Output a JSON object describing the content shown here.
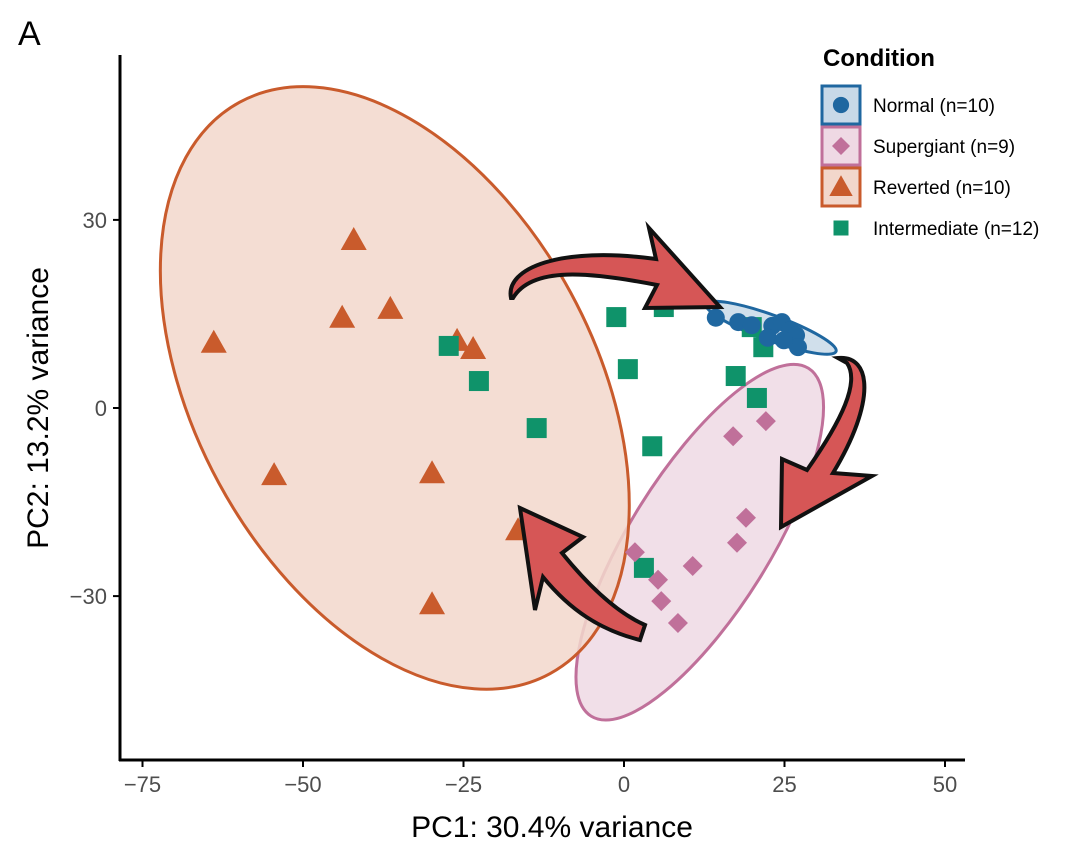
{
  "panel_label": "A",
  "chart_data": {
    "type": "scatter",
    "xlabel": "PC1: 30.4% variance",
    "ylabel": "PC2: 13.2% variance",
    "xlim": [
      -79,
      53
    ],
    "ylim": [
      -56,
      56
    ],
    "xticks": [
      -75,
      -50,
      -25,
      0,
      25,
      50
    ],
    "yticks": [
      30,
      0,
      -30
    ],
    "grid": false,
    "legend": {
      "title": "Condition",
      "placement": "top-right"
    },
    "series": [
      {
        "name": "Normal (n=10)",
        "marker": "circle",
        "color": "#1f67a0",
        "fill": "#c8d9e8",
        "points": [
          [
            14.3,
            14.4
          ],
          [
            17.8,
            13.7
          ],
          [
            19.9,
            13.2
          ],
          [
            23.1,
            13.1
          ],
          [
            24.6,
            13.7
          ],
          [
            25.9,
            12.4
          ],
          [
            26.8,
            11.6
          ],
          [
            22.4,
            11.2
          ],
          [
            27.1,
            9.7
          ],
          [
            24.9,
            10.8
          ]
        ],
        "ellipse": {
          "center": [
            22.9,
            12.8
          ],
          "semi_axes": [
            10.9,
            2.0
          ],
          "angle_deg": -20
        }
      },
      {
        "name": "Supergiant (n=9)",
        "marker": "diamond",
        "color": "#c0709a",
        "fill": "#efd9e4",
        "points": [
          [
            17.0,
            -4.5
          ],
          [
            22.1,
            -2.1
          ],
          [
            19.0,
            -17.5
          ],
          [
            17.6,
            -21.5
          ],
          [
            1.7,
            -23.0
          ],
          [
            10.7,
            -25.2
          ],
          [
            5.3,
            -27.4
          ],
          [
            5.8,
            -30.8
          ],
          [
            8.4,
            -34.3
          ]
        ],
        "ellipse": {
          "center": [
            11.8,
            -21.4
          ],
          "semi_axes": [
            32.3,
            11.0
          ],
          "angle_deg": 58
        }
      },
      {
        "name": "Reverted (n=10)",
        "marker": "triangle",
        "color": "#c95b2c",
        "fill": "#f2d7cb",
        "points": [
          [
            -63.9,
            10.4
          ],
          [
            -42.1,
            26.8
          ],
          [
            -43.9,
            14.4
          ],
          [
            -36.4,
            15.8
          ],
          [
            -26.0,
            10.7
          ],
          [
            -23.5,
            9.4
          ],
          [
            -54.5,
            -10.7
          ],
          [
            -29.9,
            -10.4
          ],
          [
            -29.9,
            -31.3
          ],
          [
            -16.5,
            -19.5
          ]
        ],
        "ellipse": {
          "center": [
            -35.7,
            3.2
          ],
          "semi_axes": [
            51.2,
            31.5
          ],
          "angle_deg": -61.5
        }
      },
      {
        "name": "Intermediate (n=12)",
        "marker": "square",
        "color": "#0f936a",
        "fill": null,
        "points": [
          [
            -1.2,
            14.5
          ],
          [
            6.2,
            16.1
          ],
          [
            0.6,
            6.2
          ],
          [
            -27.3,
            9.9
          ],
          [
            -22.6,
            4.3
          ],
          [
            -13.6,
            -3.2
          ],
          [
            4.4,
            -6.1
          ],
          [
            19.9,
            12.9
          ],
          [
            21.7,
            9.7
          ],
          [
            17.4,
            5.1
          ],
          [
            20.7,
            1.6
          ],
          [
            3.1,
            -25.5
          ]
        ],
        "ellipse": null
      }
    ],
    "annotations": [
      {
        "type": "arrow",
        "from": "Intermediate",
        "to": "Normal",
        "color": "#d65656"
      },
      {
        "type": "arrow",
        "from": "Normal",
        "to": "Supergiant",
        "color": "#d65656"
      },
      {
        "type": "arrow",
        "from": "Supergiant",
        "to": "Reverted",
        "color": "#d65656"
      }
    ]
  }
}
